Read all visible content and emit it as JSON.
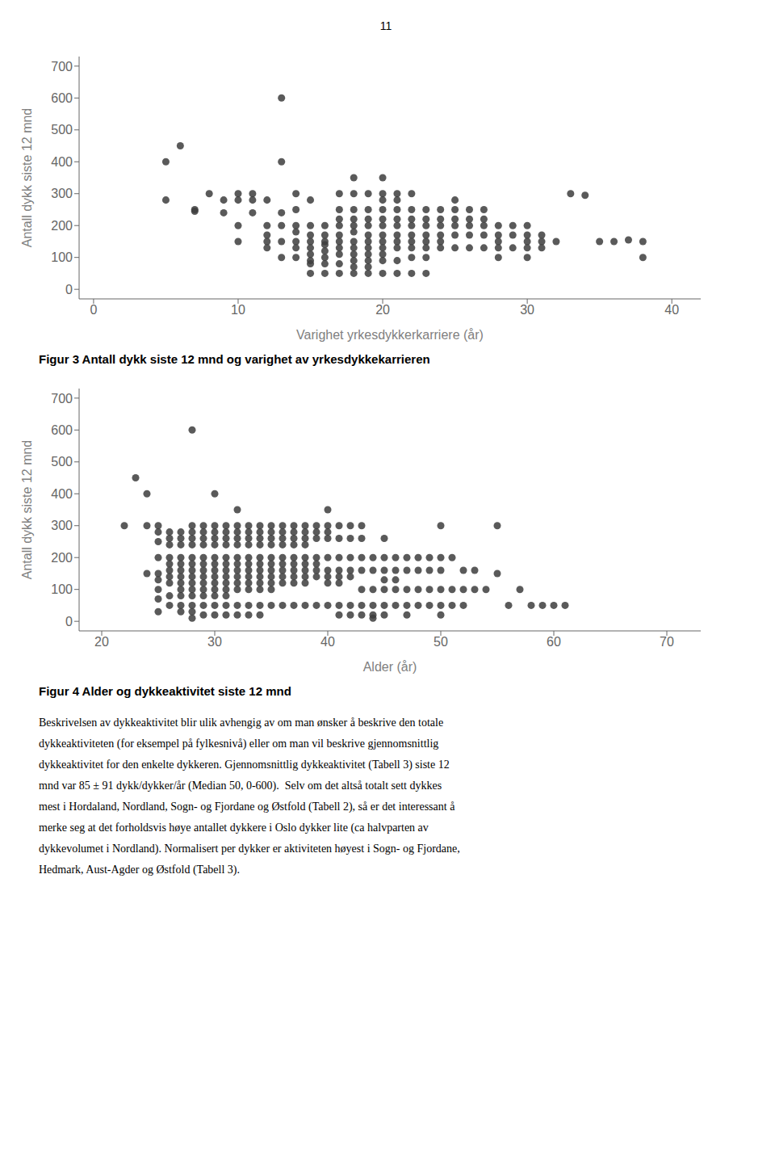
{
  "chart_data": [
    {
      "type": "scatter",
      "title": "Figur 3 Antall dykk siste 12 mnd og varighet av yrkesdykkekarrieren",
      "xlabel": "Varighet yrkesdykkerkarriere (år)",
      "ylabel": "Antall dykk siste 12 mnd",
      "annotations": [
        "11"
      ],
      "color": "#3d3d3d",
      "xlim": [
        -1,
        42
      ],
      "ylim": [
        -30,
        730
      ],
      "xticks": [
        0,
        10,
        20,
        30,
        40
      ],
      "yticks": [
        0,
        100,
        200,
        300,
        400,
        500,
        600,
        700
      ],
      "grid": false,
      "x": [
        5,
        6,
        5,
        7,
        7,
        8,
        9,
        9,
        10,
        10,
        10,
        10,
        11,
        11,
        11,
        12,
        12,
        12,
        12,
        12,
        13,
        13,
        13,
        13,
        13,
        13,
        14,
        14,
        14,
        14,
        14,
        14,
        14,
        15,
        15,
        15,
        15,
        15,
        15,
        15,
        15,
        15,
        16,
        16,
        16,
        16,
        16,
        16,
        16,
        16,
        17,
        17,
        17,
        17,
        17,
        17,
        17,
        17,
        17,
        17,
        18,
        18,
        18,
        18,
        18,
        18,
        18,
        18,
        18,
        18,
        18,
        18,
        19,
        19,
        19,
        19,
        19,
        19,
        19,
        19,
        19,
        19,
        19,
        20,
        20,
        20,
        20,
        20,
        20,
        20,
        20,
        20,
        20,
        20,
        20,
        21,
        21,
        21,
        21,
        21,
        21,
        21,
        21,
        21,
        21,
        22,
        22,
        22,
        22,
        22,
        22,
        22,
        22,
        22,
        23,
        23,
        23,
        23,
        23,
        23,
        23,
        23,
        24,
        24,
        24,
        24,
        24,
        24,
        25,
        25,
        25,
        25,
        25,
        25,
        26,
        26,
        26,
        26,
        26,
        27,
        27,
        27,
        27,
        27,
        28,
        28,
        28,
        28,
        28,
        29,
        29,
        29,
        30,
        30,
        30,
        30,
        30,
        31,
        31,
        31,
        32,
        33,
        34,
        35,
        36,
        37,
        38,
        38
      ],
      "values": [
        400,
        450,
        280,
        250,
        245,
        300,
        280,
        240,
        280,
        300,
        150,
        200,
        280,
        240,
        300,
        150,
        200,
        170,
        130,
        280,
        600,
        400,
        150,
        200,
        240,
        100,
        300,
        250,
        200,
        150,
        180,
        130,
        100,
        200,
        280,
        150,
        170,
        130,
        110,
        90,
        80,
        50,
        200,
        150,
        170,
        140,
        120,
        100,
        80,
        50,
        300,
        250,
        220,
        200,
        170,
        150,
        130,
        110,
        80,
        50,
        350,
        300,
        250,
        220,
        200,
        180,
        150,
        130,
        110,
        90,
        70,
        50,
        300,
        250,
        220,
        200,
        170,
        150,
        130,
        110,
        90,
        70,
        50,
        350,
        300,
        280,
        250,
        220,
        200,
        170,
        150,
        130,
        110,
        90,
        50,
        300,
        280,
        250,
        220,
        200,
        170,
        150,
        130,
        90,
        50,
        300,
        250,
        220,
        200,
        170,
        150,
        130,
        100,
        50,
        250,
        220,
        200,
        170,
        150,
        130,
        100,
        50,
        250,
        220,
        200,
        170,
        150,
        130,
        280,
        250,
        220,
        200,
        170,
        130,
        250,
        220,
        200,
        170,
        130,
        250,
        220,
        200,
        170,
        130,
        200,
        170,
        150,
        130,
        100,
        200,
        170,
        130,
        200,
        170,
        150,
        130,
        100,
        170,
        150,
        130,
        150,
        300,
        295,
        150,
        150,
        155,
        100,
        150
      ]
    },
    {
      "type": "scatter",
      "title": "Figur 4 Alder og dykkeaktivitet siste 12 mnd",
      "xlabel": "Alder (år)",
      "ylabel": "Antall dykk siste 12 mnd",
      "annotations": [
        "Beskrivelsen av dykkeaktivitet blir ulik avhengig av om man ønsker å beskrive den totale",
        "dykkeaktiviteten (for eksempel på fylkesnivå) eller om man vil beskrive gjennomsnittlig",
        "dykkeaktivitet for den enkelte dykkeren. Gjennomsnittlig dykkeaktivitet (Tabell 3) siste 12",
        "mnd var 85 ± 91 dykk/dykker/år (Median 50, 0-600).  Selv om det altså totalt sett dykkes",
        "mest i Hordaland, Nordland, Sogn- og Fjordane og Østfold (Tabell 2), så er det interessant å",
        "merke seg at det forholdsvis høye antallet dykkere i Oslo dykker lite (ca halvparten av",
        "dykkevolumet i Nordland). Normalisert per dykker er aktiviteten høyest i Sogn- og Fjordane,",
        "Hedmark, Aust-Agder og Østfold (Tabell 3)."
      ],
      "color": "#3d3d3d",
      "xlim": [
        18,
        73
      ],
      "ylim": [
        -30,
        730
      ],
      "xticks": [
        20,
        30,
        40,
        50,
        60,
        70
      ],
      "yticks": [
        0,
        100,
        200,
        300,
        400,
        500,
        600,
        700
      ],
      "grid": false,
      "x": [
        22,
        23,
        24,
        24,
        24,
        25,
        25,
        25,
        25,
        25,
        25,
        25,
        25,
        25,
        26,
        26,
        26,
        26,
        26,
        26,
        26,
        26,
        26,
        26,
        27,
        27,
        27,
        27,
        27,
        27,
        27,
        27,
        27,
        27,
        27,
        27,
        28,
        28,
        28,
        28,
        28,
        28,
        28,
        28,
        28,
        28,
        28,
        28,
        28,
        28,
        28,
        29,
        29,
        29,
        29,
        29,
        29,
        29,
        29,
        29,
        29,
        29,
        29,
        29,
        30,
        30,
        30,
        30,
        30,
        30,
        30,
        30,
        30,
        30,
        30,
        30,
        30,
        30,
        31,
        31,
        31,
        31,
        31,
        31,
        31,
        31,
        31,
        31,
        31,
        31,
        31,
        32,
        32,
        32,
        32,
        32,
        32,
        32,
        32,
        32,
        32,
        32,
        32,
        32,
        33,
        33,
        33,
        33,
        33,
        33,
        33,
        33,
        33,
        33,
        33,
        33,
        34,
        34,
        34,
        34,
        34,
        34,
        34,
        34,
        34,
        34,
        34,
        34,
        35,
        35,
        35,
        35,
        35,
        35,
        35,
        35,
        35,
        35,
        35,
        36,
        36,
        36,
        36,
        36,
        36,
        36,
        36,
        36,
        36,
        37,
        37,
        37,
        37,
        37,
        37,
        37,
        37,
        37,
        37,
        38,
        38,
        38,
        38,
        38,
        38,
        38,
        38,
        38,
        38,
        39,
        39,
        39,
        39,
        39,
        39,
        39,
        39,
        40,
        40,
        40,
        40,
        40,
        40,
        40,
        40,
        40,
        41,
        41,
        41,
        41,
        41,
        41,
        41,
        41,
        42,
        42,
        42,
        42,
        42,
        42,
        42,
        43,
        43,
        43,
        43,
        43,
        43,
        43,
        44,
        44,
        44,
        44,
        44,
        44,
        45,
        45,
        45,
        45,
        45,
        45,
        45,
        46,
        46,
        46,
        46,
        46,
        47,
        47,
        47,
        47,
        47,
        48,
        48,
        48,
        48,
        49,
        49,
        49,
        49,
        50,
        50,
        50,
        50,
        50,
        50,
        51,
        51,
        51,
        52,
        52,
        52,
        53,
        53,
        54,
        55,
        55,
        56,
        57,
        58,
        59,
        60,
        61
      ],
      "values": [
        300,
        450,
        400,
        300,
        150,
        300,
        280,
        250,
        200,
        150,
        130,
        100,
        70,
        30,
        280,
        260,
        240,
        200,
        180,
        160,
        140,
        120,
        80,
        50,
        280,
        260,
        240,
        200,
        180,
        160,
        140,
        120,
        100,
        80,
        50,
        30,
        600,
        300,
        280,
        260,
        240,
        200,
        180,
        160,
        140,
        120,
        100,
        80,
        50,
        30,
        10,
        300,
        280,
        260,
        240,
        200,
        180,
        160,
        140,
        120,
        100,
        80,
        50,
        20,
        400,
        300,
        280,
        260,
        240,
        200,
        180,
        160,
        140,
        120,
        100,
        80,
        50,
        20,
        300,
        280,
        260,
        240,
        200,
        180,
        160,
        140,
        120,
        100,
        80,
        50,
        20,
        350,
        300,
        280,
        260,
        240,
        200,
        180,
        160,
        140,
        120,
        100,
        50,
        20,
        300,
        280,
        260,
        240,
        200,
        180,
        160,
        140,
        120,
        100,
        50,
        20,
        300,
        280,
        260,
        240,
        200,
        180,
        160,
        140,
        120,
        100,
        50,
        20,
        300,
        280,
        260,
        240,
        200,
        180,
        160,
        140,
        120,
        100,
        50,
        300,
        280,
        260,
        240,
        200,
        180,
        160,
        140,
        120,
        50,
        300,
        280,
        260,
        240,
        200,
        180,
        160,
        140,
        120,
        50,
        300,
        280,
        260,
        240,
        200,
        180,
        160,
        140,
        120,
        50,
        300,
        280,
        260,
        200,
        180,
        160,
        140,
        50,
        350,
        300,
        280,
        260,
        200,
        160,
        140,
        120,
        50,
        300,
        260,
        200,
        160,
        140,
        120,
        50,
        20,
        300,
        260,
        200,
        160,
        140,
        50,
        20,
        300,
        260,
        200,
        160,
        100,
        50,
        20,
        200,
        160,
        100,
        50,
        20,
        10,
        260,
        200,
        160,
        130,
        100,
        50,
        20,
        200,
        160,
        130,
        100,
        50,
        200,
        160,
        100,
        50,
        20,
        200,
        160,
        100,
        50,
        200,
        160,
        100,
        50,
        300,
        200,
        160,
        100,
        50,
        20,
        200,
        100,
        50,
        160,
        100,
        50,
        160,
        100,
        100,
        300,
        150,
        50,
        100,
        50,
        50,
        50,
        50
      ]
    }
  ]
}
